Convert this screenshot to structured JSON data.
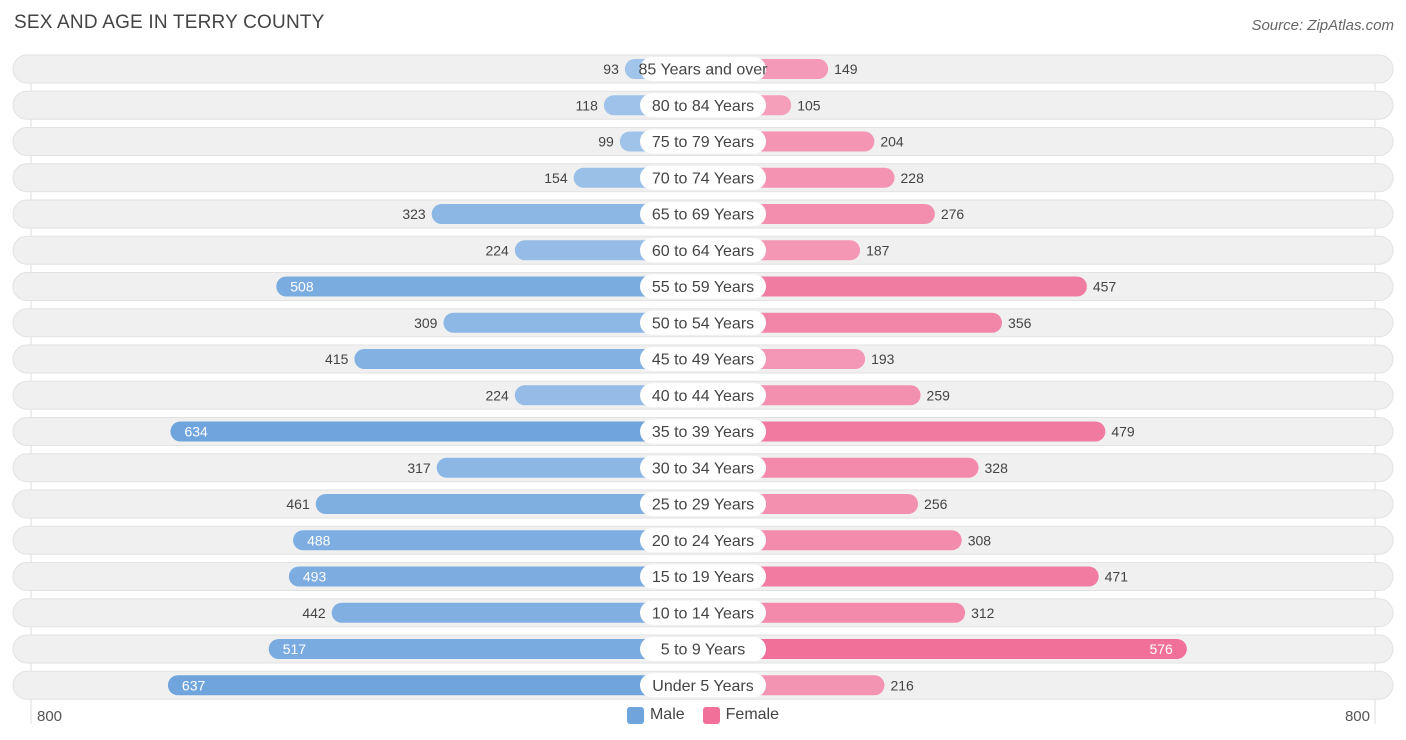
{
  "title": "SEX AND AGE IN TERRY COUNTY",
  "source": "Source: ZipAtlas.com",
  "colors": {
    "male": "#6fa4dd",
    "male_light": "#a9c9ec",
    "female": "#f07099",
    "female_light": "#f6a9c3",
    "row_bg": "#f0f0f0"
  },
  "chart_data": {
    "type": "bar",
    "orientation": "horizontal-diverging",
    "categories": [
      "85 Years and over",
      "80 to 84 Years",
      "75 to 79 Years",
      "70 to 74 Years",
      "65 to 69 Years",
      "60 to 64 Years",
      "55 to 59 Years",
      "50 to 54 Years",
      "45 to 49 Years",
      "40 to 44 Years",
      "35 to 39 Years",
      "30 to 34 Years",
      "25 to 29 Years",
      "20 to 24 Years",
      "15 to 19 Years",
      "10 to 14 Years",
      "5 to 9 Years",
      "Under 5 Years"
    ],
    "series": [
      {
        "name": "Male",
        "values": [
          93,
          118,
          99,
          154,
          323,
          224,
          508,
          309,
          415,
          224,
          634,
          317,
          461,
          488,
          493,
          442,
          517,
          637
        ]
      },
      {
        "name": "Female",
        "values": [
          149,
          105,
          204,
          228,
          276,
          187,
          457,
          356,
          193,
          259,
          479,
          328,
          256,
          308,
          471,
          312,
          576,
          216
        ]
      }
    ],
    "xlim": [
      -800,
      800
    ],
    "axis_left_label": "800",
    "axis_right_label": "800",
    "legend_position": "bottom-center"
  }
}
